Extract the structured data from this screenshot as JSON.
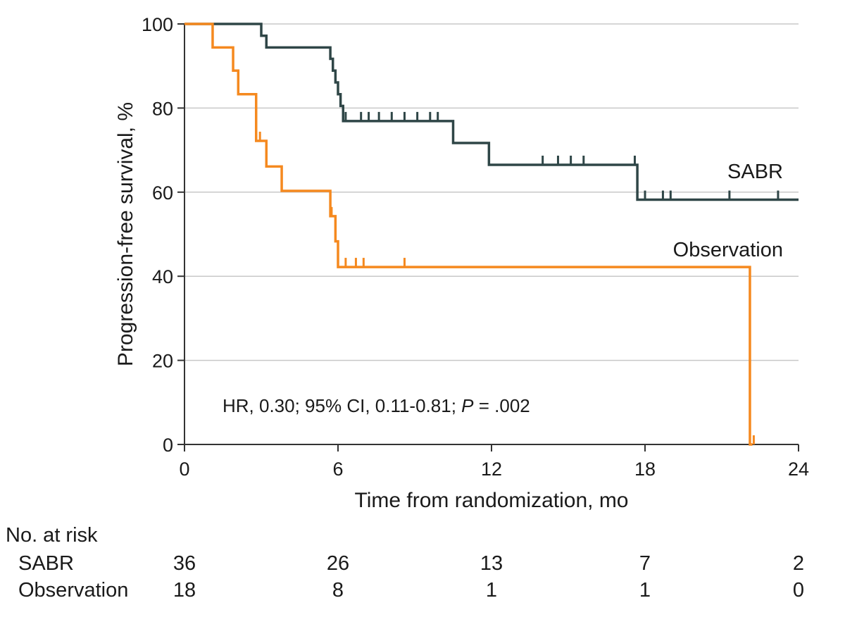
{
  "chart_data": {
    "type": "line",
    "subtype": "kaplan-meier step curve",
    "xlabel": "Time from randomization, mo",
    "ylabel": "Progression-free survival, %",
    "xlim": [
      0,
      24
    ],
    "ylim": [
      0,
      100
    ],
    "x_ticks": [
      0,
      6,
      12,
      18,
      24
    ],
    "y_ticks": [
      0,
      20,
      40,
      60,
      80,
      100
    ],
    "grid": "horizontal",
    "annotation": {
      "prefix": "HR, 0.30; 95% CI, 0.11-0.81; ",
      "p_symbol": "P",
      "suffix": " = .002"
    },
    "colors": {
      "SABR": "#2f4647",
      "Observation": "#f5891f",
      "grid": "#c8c8c8",
      "axis": "#333333"
    },
    "series": [
      {
        "name": "SABR",
        "label": "SABR",
        "steps": [
          [
            0,
            100
          ],
          [
            3.0,
            97.2
          ],
          [
            3.2,
            94.4
          ],
          [
            5.7,
            91.7
          ],
          [
            5.8,
            88.9
          ],
          [
            5.9,
            86.1
          ],
          [
            6.0,
            83.3
          ],
          [
            6.1,
            80.5
          ],
          [
            6.2,
            76.9
          ],
          [
            10.5,
            71.7
          ],
          [
            11.9,
            66.5
          ],
          [
            17.7,
            58.2
          ],
          [
            24,
            58.2
          ]
        ],
        "censored": [
          6.3,
          6.9,
          7.2,
          7.6,
          8.1,
          8.6,
          9.1,
          9.6,
          9.9,
          14.0,
          14.6,
          15.1,
          15.6,
          17.6,
          18.0,
          18.7,
          19.0,
          21.3,
          23.2
        ]
      },
      {
        "name": "Observation",
        "label": "Observation",
        "steps": [
          [
            0,
            100
          ],
          [
            1.1,
            94.4
          ],
          [
            1.9,
            88.9
          ],
          [
            2.1,
            83.3
          ],
          [
            2.8,
            72.2
          ],
          [
            3.2,
            66.1
          ],
          [
            3.8,
            60.3
          ],
          [
            5.7,
            54.3
          ],
          [
            5.9,
            48.3
          ],
          [
            6.0,
            42.2
          ],
          [
            22.1,
            0
          ],
          [
            22.2,
            0
          ]
        ],
        "censored": [
          2.95,
          5.75,
          6.3,
          6.7,
          7.0,
          8.6,
          22.25
        ]
      }
    ]
  },
  "risk_table": {
    "title": "No. at risk",
    "times": [
      0,
      6,
      12,
      18,
      24
    ],
    "rows": [
      {
        "label": "SABR",
        "values": [
          "36",
          "26",
          "13",
          "7",
          "2"
        ]
      },
      {
        "label": "Observation",
        "values": [
          "18",
          "8",
          "1",
          "1",
          "0"
        ]
      }
    ]
  }
}
